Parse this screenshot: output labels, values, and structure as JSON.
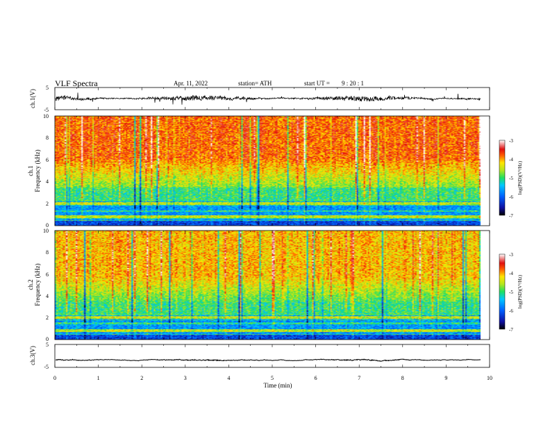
{
  "chart_data": {
    "type": "heatmap",
    "header": {
      "title": "VLF Spectra",
      "date": "Apr. 11, 2022",
      "station": "station= ATH",
      "start_label": "start UT =",
      "start_time": "9 : 20 : 1"
    },
    "x_axis": {
      "label": "Time  (min)",
      "range": [
        0,
        10
      ],
      "ticks": [
        "0",
        "1",
        "2",
        "3",
        "4",
        "5",
        "6",
        "7",
        "8",
        "9",
        "10"
      ]
    },
    "panels": [
      {
        "kind": "waveform",
        "ylabel": "ch.1(V)",
        "ylim": [
          -5,
          5
        ],
        "yticks": [
          "5",
          "-5"
        ],
        "amplitude": 2.2,
        "data_end_min": 9.8,
        "color": "#000000"
      },
      {
        "kind": "spectrogram",
        "ylabel_top": "ch.1",
        "ylabel": "Frequency  (kHz)",
        "ylim": [
          0,
          10
        ],
        "yticks": [
          "0",
          "2",
          "4",
          "6",
          "8",
          "10"
        ],
        "data_end_min": 9.8,
        "colorbar": {
          "label": "log(PSD)(V²/Hz)",
          "range": [
            -7,
            -3
          ],
          "ticks": [
            "-3",
            "-4",
            "-5",
            "-6",
            "-7"
          ]
        }
      },
      {
        "kind": "spectrogram",
        "ylabel_top": "ch.2",
        "ylabel": "Frequency  (kHz)",
        "ylim": [
          0,
          10
        ],
        "yticks": [
          "0",
          "2",
          "4",
          "6",
          "8",
          "10"
        ],
        "data_end_min": 9.8,
        "colorbar": {
          "label": "log(PSD)(V²/Hz)",
          "range": [
            -7,
            -3
          ],
          "ticks": [
            "-3",
            "-4",
            "-5",
            "-6",
            "-7"
          ]
        }
      },
      {
        "kind": "waveform",
        "ylabel": "ch.3(V)",
        "ylim": [
          -5,
          5
        ],
        "yticks": [
          "5",
          "-5"
        ],
        "offset": -1.8,
        "amplitude": 0.35,
        "data_end_min": 9.8,
        "color": "#000000"
      }
    ]
  }
}
